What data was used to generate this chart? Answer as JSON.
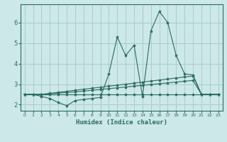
{
  "title": "",
  "xlabel": "Humidex (Indice chaleur)",
  "background_color": "#cce8e8",
  "grid_color": "#aacccc",
  "line_color": "#2a6b60",
  "xlim": [
    -0.5,
    23.5
  ],
  "ylim": [
    1.7,
    6.9
  ],
  "yticks": [
    2,
    3,
    4,
    5,
    6
  ],
  "xticks": [
    0,
    1,
    2,
    3,
    4,
    5,
    6,
    7,
    8,
    9,
    10,
    11,
    12,
    13,
    14,
    15,
    16,
    17,
    18,
    19,
    20,
    21,
    22,
    23
  ],
  "series": [
    {
      "x": [
        0,
        1,
        2,
        3,
        4,
        5,
        6,
        7,
        8,
        9,
        10,
        11,
        12,
        13,
        14,
        15,
        16,
        17,
        18,
        19,
        20,
        21,
        22,
        23
      ],
      "y": [
        2.5,
        2.5,
        2.4,
        2.3,
        2.1,
        1.95,
        2.2,
        2.25,
        2.3,
        2.35,
        3.5,
        5.3,
        4.4,
        4.9,
        2.4,
        5.6,
        6.55,
        6.0,
        4.4,
        3.5,
        3.45,
        2.5,
        2.5,
        2.5
      ]
    },
    {
      "x": [
        0,
        1,
        2,
        3,
        4,
        5,
        6,
        7,
        8,
        9,
        10,
        11,
        12,
        13,
        14,
        15,
        16,
        17,
        18,
        19,
        20,
        21,
        22,
        23
      ],
      "y": [
        2.5,
        2.5,
        2.5,
        2.55,
        2.6,
        2.65,
        2.7,
        2.75,
        2.8,
        2.85,
        2.9,
        2.95,
        3.0,
        3.05,
        3.1,
        3.15,
        3.2,
        3.25,
        3.3,
        3.35,
        3.4,
        2.5,
        2.5,
        2.5
      ]
    },
    {
      "x": [
        0,
        1,
        2,
        3,
        4,
        5,
        6,
        7,
        8,
        9,
        10,
        11,
        12,
        13,
        14,
        15,
        16,
        17,
        18,
        19,
        20,
        21,
        22,
        23
      ],
      "y": [
        2.5,
        2.5,
        2.5,
        2.53,
        2.56,
        2.59,
        2.62,
        2.66,
        2.7,
        2.74,
        2.78,
        2.82,
        2.86,
        2.9,
        2.94,
        2.98,
        3.02,
        3.06,
        3.1,
        3.14,
        3.18,
        2.5,
        2.5,
        2.5
      ]
    },
    {
      "x": [
        0,
        1,
        2,
        3,
        4,
        5,
        6,
        7,
        8,
        9,
        10,
        11,
        12,
        13,
        14,
        15,
        16,
        17,
        18,
        19,
        20,
        21,
        22,
        23
      ],
      "y": [
        2.5,
        2.5,
        2.5,
        2.5,
        2.5,
        2.5,
        2.5,
        2.5,
        2.5,
        2.5,
        2.5,
        2.5,
        2.5,
        2.5,
        2.5,
        2.5,
        2.5,
        2.5,
        2.5,
        2.5,
        2.5,
        2.5,
        2.5,
        2.5
      ]
    }
  ]
}
